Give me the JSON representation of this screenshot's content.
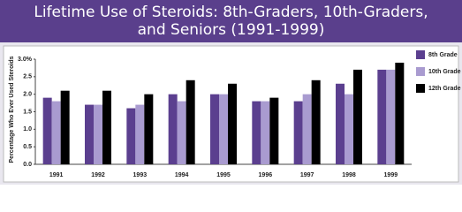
{
  "chart_data": {
    "type": "bar",
    "title": "Lifetime Use of Steroids: 8th-Graders, 10th-Graders, and Seniors (1991-1999)",
    "y_label": "Percentage Who Ever Used Steroids",
    "categories": [
      "1991",
      "1992",
      "1993",
      "1994",
      "1995",
      "1996",
      "1997",
      "1998",
      "1999"
    ],
    "series": [
      {
        "name": "8th Grade",
        "color": "#5b3f8f",
        "values": [
          1.9,
          1.7,
          1.6,
          2.0,
          2.0,
          1.8,
          1.8,
          2.3,
          2.7
        ]
      },
      {
        "name": "10th Grade",
        "color": "#a99bd0",
        "values": [
          1.8,
          1.7,
          1.7,
          1.8,
          2.0,
          1.8,
          2.0,
          2.0,
          2.7
        ]
      },
      {
        "name": "12th Grade",
        "color": "#000000",
        "values": [
          2.1,
          2.1,
          2.0,
          2.4,
          2.3,
          1.9,
          2.4,
          2.7,
          2.9
        ]
      }
    ],
    "ylim": [
      0,
      3
    ],
    "yticks": [
      {
        "value": 0,
        "label": "0.0"
      },
      0.5,
      {
        "value": 1,
        "label": "1.0"
      },
      1.5,
      {
        "value": 2,
        "label": "2.0"
      },
      2.5,
      {
        "value": 3,
        "label": "3.0%"
      }
    ],
    "legend": "right"
  }
}
